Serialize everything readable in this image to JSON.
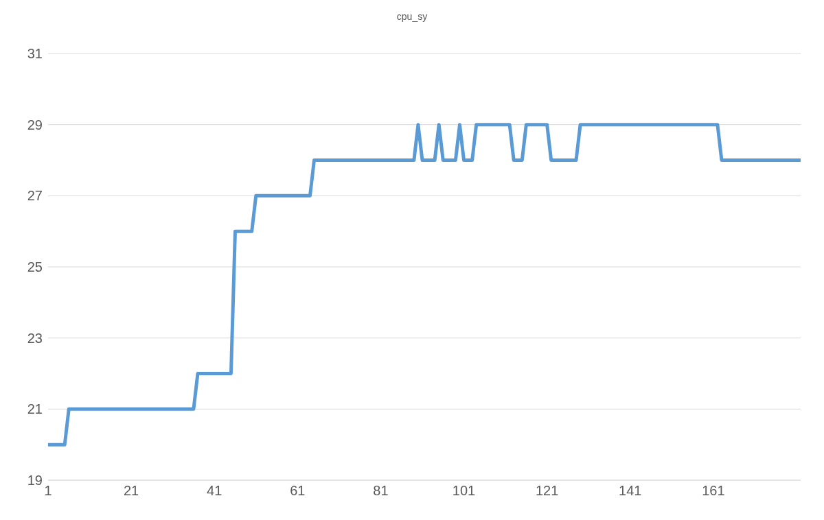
{
  "chart_data": {
    "type": "line",
    "title": "cpu_sy",
    "x": [
      1,
      5,
      6,
      36,
      37,
      45,
      46,
      50,
      51,
      64,
      65,
      89,
      90,
      91,
      94,
      95,
      96,
      99,
      100,
      101,
      103,
      104,
      112,
      113,
      115,
      116,
      121,
      122,
      128,
      129,
      162,
      163,
      182
    ],
    "series": [
      {
        "color": "#5b9bd5",
        "values": [
          20,
          20,
          21,
          21,
          22,
          22,
          26,
          26,
          27,
          27,
          28,
          28,
          29,
          28,
          28,
          29,
          28,
          28,
          29,
          28,
          28,
          29,
          29,
          28,
          28,
          29,
          29,
          28,
          28,
          29,
          29,
          28,
          28
        ]
      }
    ],
    "xlim": [
      1,
      182
    ],
    "xticks": [
      1,
      21,
      41,
      61,
      81,
      101,
      121,
      141,
      161
    ],
    "ylim": [
      19,
      31
    ],
    "yticks": [
      19,
      21,
      23,
      25,
      27,
      29,
      31
    ],
    "grid": "y",
    "legend": false,
    "marker": "none",
    "line_style": "solid"
  }
}
